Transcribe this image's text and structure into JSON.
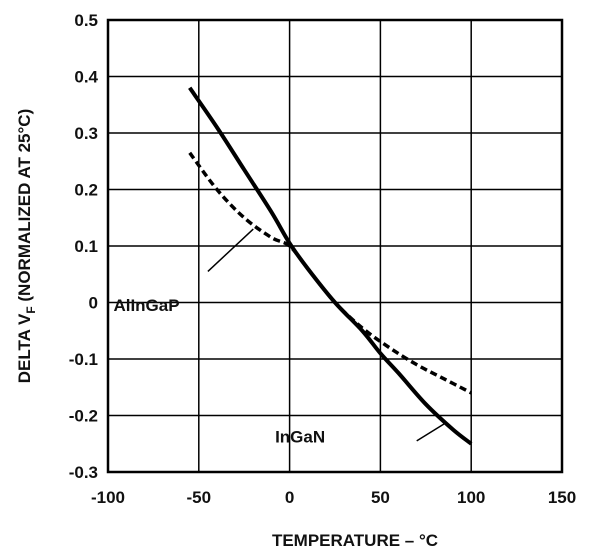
{
  "chart_data": {
    "type": "line",
    "xlabel": "TEMPERATURE – °C",
    "ylabel": "DELTA V",
    "ylabel_sub": "F",
    "ylabel_suffix": " (NORMALIZED AT 25°C)",
    "xlim": [
      -100,
      150
    ],
    "ylim": [
      -0.3,
      0.5
    ],
    "x_ticks": [
      -100,
      -50,
      0,
      50,
      100,
      150
    ],
    "x_tick_labels": [
      "-100",
      "-50",
      "0",
      "50",
      "100",
      "150"
    ],
    "y_ticks": [
      -0.3,
      -0.2,
      -0.1,
      0,
      0.1,
      0.2,
      0.3,
      0.4,
      0.5
    ],
    "y_tick_labels": [
      "-0.3",
      "-0.2",
      "-0.1",
      "0",
      "0.1",
      "0.2",
      "0.3",
      "0.4",
      "0.5"
    ],
    "grid": true,
    "series": [
      {
        "name": "InGaN",
        "style": "solid",
        "color": "#000000",
        "points": [
          [
            -55,
            0.38
          ],
          [
            -40,
            0.31
          ],
          [
            -25,
            0.235
          ],
          [
            -10,
            0.16
          ],
          [
            0,
            0.105
          ],
          [
            10,
            0.06
          ],
          [
            25,
            0.0
          ],
          [
            40,
            -0.05
          ],
          [
            50,
            -0.09
          ],
          [
            60,
            -0.125
          ],
          [
            75,
            -0.18
          ],
          [
            90,
            -0.225
          ],
          [
            100,
            -0.25
          ]
        ]
      },
      {
        "name": "AlInGaP",
        "style": "dashed",
        "color": "#000000",
        "points": [
          [
            -55,
            0.265
          ],
          [
            -40,
            0.2
          ],
          [
            -25,
            0.15
          ],
          [
            -10,
            0.115
          ],
          [
            0,
            0.1
          ],
          [
            10,
            0.06
          ],
          [
            25,
            0.0
          ],
          [
            40,
            -0.045
          ],
          [
            55,
            -0.08
          ],
          [
            70,
            -0.11
          ],
          [
            85,
            -0.135
          ],
          [
            100,
            -0.16
          ]
        ]
      }
    ],
    "annotations": [
      {
        "text": "AlInGaP",
        "x": -97,
        "y": -0.015
      },
      {
        "text": "InGaN",
        "x": -8,
        "y": -0.248
      }
    ],
    "leaders": [
      {
        "from": [
          -45,
          0.055
        ],
        "to": [
          -20,
          0.13
        ]
      },
      {
        "from": [
          70,
          -0.245
        ],
        "to": [
          85,
          -0.215
        ]
      }
    ]
  }
}
